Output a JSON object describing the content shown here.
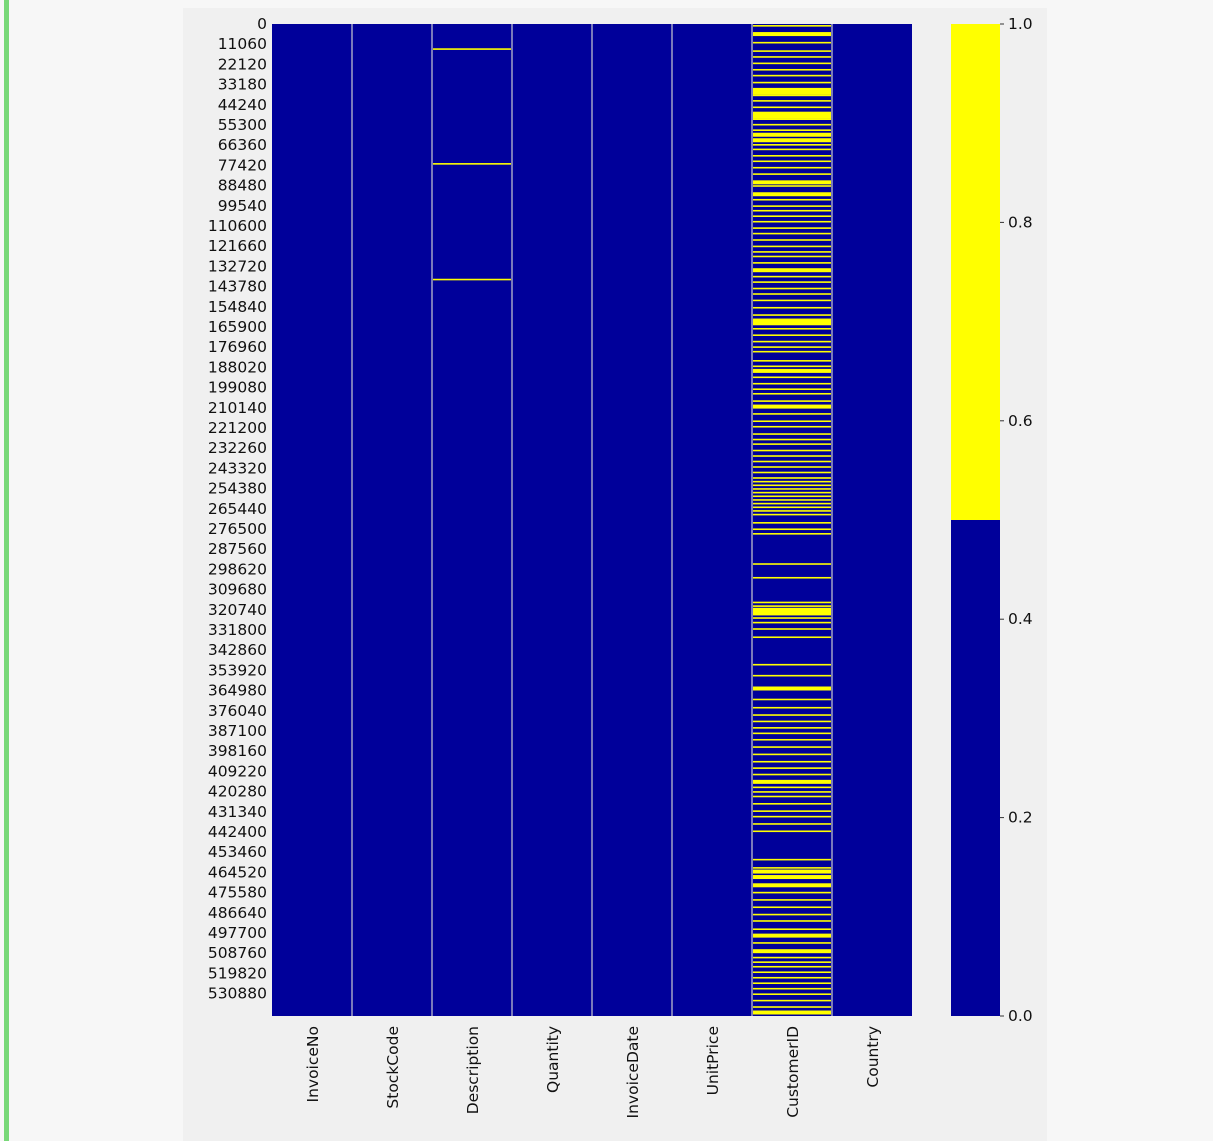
{
  "chart_data": {
    "type": "heatmap",
    "title": "",
    "xlabel": "",
    "ylabel": "",
    "columns": [
      "InvoiceNo",
      "StockCode",
      "Description",
      "Quantity",
      "InvoiceDate",
      "UnitPrice",
      "CustomerID",
      "Country"
    ],
    "row_ticks": [
      "0",
      "11060",
      "22120",
      "33180",
      "44240",
      "55300",
      "66360",
      "77420",
      "88480",
      "99540",
      "110600",
      "121660",
      "132720",
      "143780",
      "154840",
      "165900",
      "176960",
      "188020",
      "199080",
      "210140",
      "221200",
      "232260",
      "243320",
      "254380",
      "265440",
      "276500",
      "287560",
      "298620",
      "309680",
      "320740",
      "331800",
      "342860",
      "353920",
      "364980",
      "376040",
      "387100",
      "398160",
      "409220",
      "420280",
      "431340",
      "442400",
      "453460",
      "464520",
      "475580",
      "486640",
      "497700",
      "508760",
      "519820",
      "530880"
    ],
    "row_count": 541909,
    "row_range": [
      0,
      541909
    ],
    "value_range": [
      0,
      1
    ],
    "colormap": {
      "0": "#00009a",
      "1": "#ffff00"
    },
    "separator_color": "#f5f5dc",
    "colorbar": {
      "ticks": [
        "0.0",
        "0.2",
        "0.4",
        "0.6",
        "0.8",
        "1.0"
      ],
      "range": [
        0.0,
        1.0
      ]
    },
    "missing_rows": {
      "InvoiceNo": [],
      "StockCode": [],
      "Description": [
        13700,
        76400,
        139600
      ],
      "Quantity": [],
      "InvoiceDate": [],
      "UnitPrice": [],
      "CustomerID": [
        1000,
        5500,
        10200,
        14800,
        18000,
        21500,
        25000,
        28200,
        32000,
        36000,
        37500,
        39000,
        42000,
        45500,
        49000,
        50500,
        52000,
        55000,
        58000,
        60500,
        63500,
        66000,
        68500,
        72000,
        75000,
        78500,
        82000,
        86500,
        88500,
        93000,
        96000,
        99500,
        102000,
        105000,
        108000,
        111500,
        114500,
        118000,
        121500,
        124500,
        127000,
        130500,
        134500,
        138000,
        141000,
        144500,
        147500,
        151000,
        155000,
        159000,
        162000,
        163500,
        166500,
        170000,
        173500,
        176500,
        179000,
        184000,
        187000,
        189500,
        193000,
        196500,
        199500,
        202000,
        206000,
        209000,
        213000,
        217000,
        220000,
        224000,
        227000,
        229500,
        233000,
        236000,
        239000,
        242000,
        245000,
        248000,
        250000,
        252000,
        254000,
        256000,
        258000,
        260000,
        262000,
        264000,
        266000,
        268000,
        272500,
        276000,
        278500,
        295000,
        302500,
        316000,
        318000,
        320000,
        322000,
        324500,
        327000,
        330500,
        335000,
        350000,
        356000,
        363000,
        369000,
        373500,
        377500,
        381000,
        384500,
        387500,
        391000,
        395000,
        399000,
        403000,
        406500,
        410000,
        414000,
        417000,
        419500,
        422000,
        426000,
        430000,
        433000,
        437000,
        441000,
        456500,
        461000,
        463000,
        466000,
        470500,
        474500,
        478500,
        482500,
        486500,
        490000,
        494500,
        498000,
        502000,
        506500,
        510000,
        512500,
        515000,
        518000,
        521000,
        524000,
        527000,
        530000,
        533500,
        537000,
        540000
      ],
      "Country": []
    },
    "thick_missing": {
      "CustomerID": [
        5500,
        36000,
        37500,
        49000,
        50500,
        60500,
        63500,
        86500,
        93000,
        134500,
        162000,
        163500,
        189500,
        209000,
        320000,
        322000,
        363000,
        414000,
        463000,
        466000,
        470500,
        498000,
        506500,
        540000
      ]
    },
    "legend": ""
  }
}
